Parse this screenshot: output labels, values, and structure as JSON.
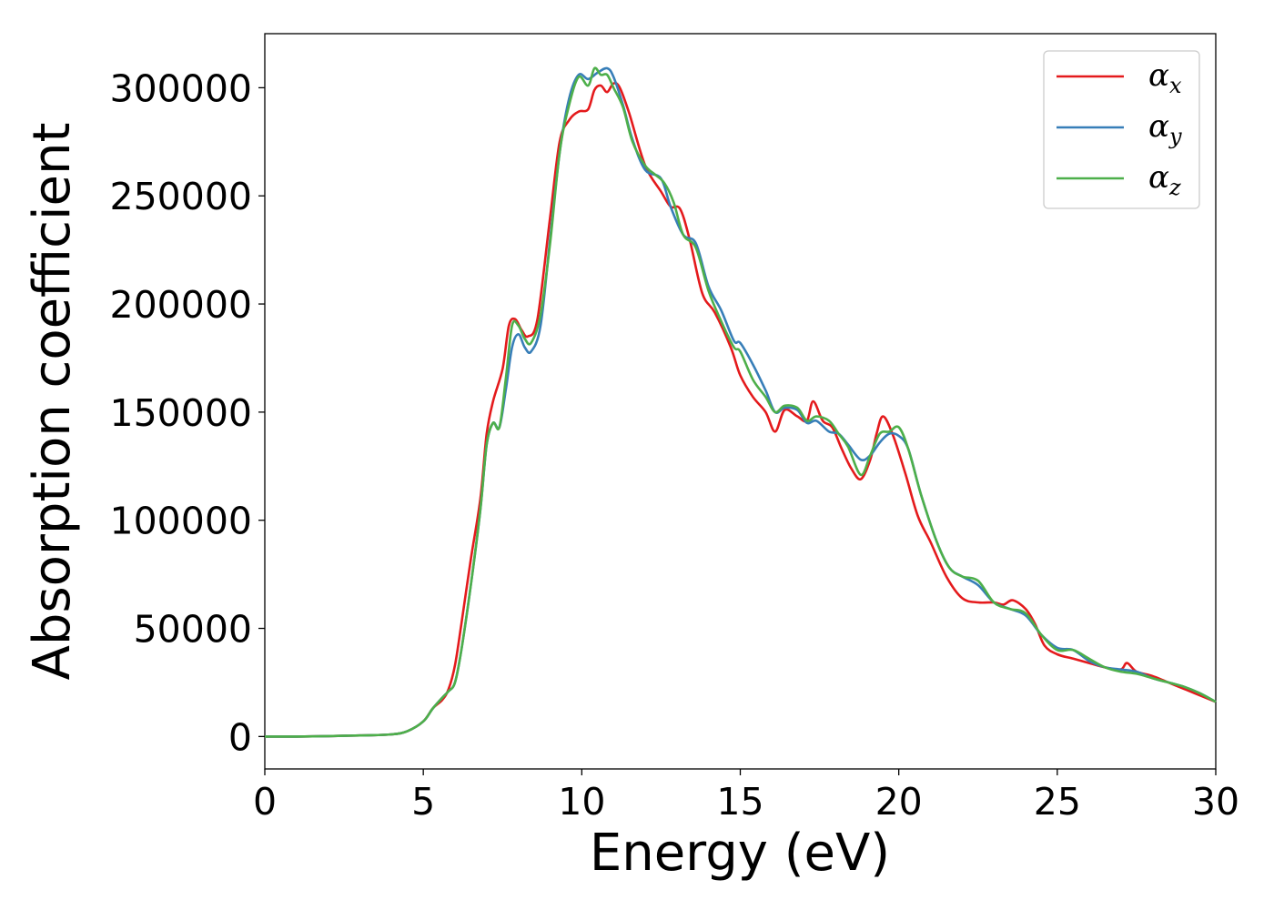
{
  "chart_data": {
    "type": "line",
    "title": "",
    "xlabel": "Energy (eV)",
    "ylabel": "Absorption coefficient",
    "xlim": [
      0,
      30
    ],
    "ylim": [
      -15000,
      325000
    ],
    "xticks": [
      0,
      5,
      10,
      15,
      20,
      25,
      30
    ],
    "yticks": [
      0,
      50000,
      100000,
      150000,
      200000,
      250000,
      300000
    ],
    "grid": false,
    "legend_position": "top-right",
    "series": [
      {
        "name": "α_x",
        "legend_base": "α",
        "legend_sub": "x",
        "color": "#e41a1c",
        "x": [
          0,
          1,
          2,
          3,
          4,
          4.5,
          5,
          5.3,
          5.6,
          5.8,
          6.0,
          6.2,
          6.5,
          6.8,
          7.0,
          7.2,
          7.5,
          7.7,
          7.9,
          8.1,
          8.3,
          8.6,
          9.0,
          9.3,
          9.6,
          9.9,
          10.2,
          10.4,
          10.6,
          10.8,
          11.0,
          11.2,
          11.5,
          12.0,
          12.5,
          12.8,
          13.1,
          13.4,
          13.8,
          14.2,
          14.7,
          15.0,
          15.4,
          15.8,
          16.1,
          16.4,
          16.8,
          17.1,
          17.3,
          17.6,
          17.9,
          18.2,
          18.5,
          18.8,
          19.1,
          19.3,
          19.5,
          19.8,
          20.2,
          20.6,
          21.0,
          21.5,
          22.0,
          22.5,
          23.0,
          23.3,
          23.6,
          24.0,
          24.3,
          24.6,
          25.0,
          25.5,
          26.0,
          26.5,
          27.0,
          27.2,
          27.5,
          28.0,
          28.5,
          29.0,
          29.5,
          30.0
        ],
        "y": [
          0,
          0,
          200,
          500,
          1000,
          2500,
          7000,
          13000,
          17000,
          22000,
          33000,
          52000,
          82000,
          110000,
          140000,
          155000,
          170000,
          190000,
          193000,
          188000,
          185000,
          193000,
          240000,
          275000,
          285000,
          289000,
          290000,
          299000,
          301000,
          298000,
          302000,
          300000,
          288000,
          264000,
          252000,
          245000,
          244000,
          230000,
          205000,
          196000,
          180000,
          167000,
          157000,
          150000,
          141000,
          151000,
          148000,
          146000,
          155000,
          146000,
          143000,
          133000,
          124000,
          119000,
          128000,
          140000,
          148000,
          140000,
          122000,
          102000,
          90000,
          74000,
          64000,
          62000,
          62000,
          61000,
          63000,
          59000,
          52000,
          42000,
          38000,
          36000,
          34000,
          32000,
          31000,
          34000,
          30000,
          28000,
          25000,
          22000,
          19000,
          16000
        ]
      },
      {
        "name": "α_y",
        "legend_base": "α",
        "legend_sub": "y",
        "color": "#377eb8",
        "x": [
          0,
          1,
          2,
          3,
          4,
          4.5,
          5,
          5.3,
          5.6,
          5.8,
          6.0,
          6.2,
          6.5,
          6.8,
          7.0,
          7.2,
          7.4,
          7.6,
          7.8,
          8.0,
          8.2,
          8.4,
          8.7,
          9.0,
          9.3,
          9.6,
          9.9,
          10.2,
          10.5,
          10.8,
          11.0,
          11.3,
          11.6,
          12.0,
          12.5,
          12.8,
          13.2,
          13.6,
          14.0,
          14.4,
          14.8,
          15.0,
          15.4,
          15.8,
          16.1,
          16.4,
          16.8,
          17.1,
          17.4,
          17.8,
          18.1,
          18.4,
          18.8,
          19.1,
          19.4,
          19.7,
          20.0,
          20.3,
          20.7,
          21.2,
          21.6,
          22.0,
          22.5,
          23.0,
          23.5,
          24.0,
          24.5,
          25.0,
          25.5,
          26.0,
          26.5,
          27.0,
          27.5,
          28.0,
          28.5,
          29.0,
          29.5,
          30.0
        ],
        "y": [
          0,
          0,
          200,
          500,
          1000,
          2500,
          7000,
          13000,
          18000,
          21000,
          25000,
          40000,
          70000,
          105000,
          135000,
          145000,
          143000,
          160000,
          180000,
          186000,
          180000,
          178000,
          190000,
          230000,
          270000,
          295000,
          306000,
          304000,
          307000,
          309000,
          305000,
          292000,
          276000,
          262000,
          258000,
          245000,
          232000,
          228000,
          208000,
          197000,
          183000,
          182000,
          172000,
          160000,
          150000,
          152000,
          151000,
          145000,
          146000,
          141000,
          140000,
          135000,
          128000,
          130000,
          136000,
          140000,
          139000,
          133000,
          112000,
          90000,
          78000,
          74000,
          70000,
          62000,
          59000,
          56000,
          47000,
          41000,
          40000,
          35000,
          32000,
          31000,
          30000,
          27000,
          25000,
          23000,
          20000,
          16000
        ]
      },
      {
        "name": "α_z",
        "legend_base": "α",
        "legend_sub": "z",
        "color": "#4daf4a",
        "x": [
          0,
          1,
          2,
          3,
          4,
          4.5,
          5,
          5.3,
          5.6,
          5.8,
          6.0,
          6.2,
          6.5,
          6.8,
          7.0,
          7.2,
          7.4,
          7.6,
          7.8,
          8.0,
          8.2,
          8.4,
          8.7,
          9.0,
          9.3,
          9.6,
          9.9,
          10.2,
          10.4,
          10.6,
          10.8,
          11.0,
          11.3,
          11.6,
          12.0,
          12.3,
          12.6,
          12.9,
          13.2,
          13.6,
          14.0,
          14.4,
          14.8,
          15.0,
          15.4,
          15.8,
          16.1,
          16.4,
          16.8,
          17.1,
          17.4,
          17.8,
          18.1,
          18.4,
          18.8,
          19.1,
          19.4,
          19.7,
          20.0,
          20.3,
          20.7,
          21.2,
          21.6,
          22.0,
          22.5,
          23.0,
          23.5,
          24.0,
          24.5,
          25.0,
          25.5,
          26.0,
          26.5,
          27.0,
          27.5,
          28.0,
          28.5,
          29.0,
          29.5,
          30.0
        ],
        "y": [
          0,
          0,
          200,
          500,
          1000,
          2500,
          7000,
          13000,
          18000,
          21000,
          25000,
          40000,
          70000,
          105000,
          135000,
          145000,
          143000,
          165000,
          190000,
          190000,
          184000,
          182000,
          195000,
          228000,
          270000,
          292000,
          305000,
          301000,
          309000,
          306000,
          306000,
          300000,
          291000,
          275000,
          264000,
          260000,
          256000,
          247000,
          232000,
          226000,
          206000,
          192000,
          180000,
          178000,
          165000,
          157000,
          150000,
          153000,
          152000,
          146000,
          148000,
          146000,
          140000,
          134000,
          121000,
          130000,
          140000,
          141000,
          143000,
          133000,
          112000,
          90000,
          78000,
          74000,
          72000,
          62000,
          59000,
          57000,
          47000,
          40000,
          40000,
          36000,
          32000,
          30000,
          29000,
          27000,
          25000,
          23000,
          20000,
          16000
        ]
      }
    ]
  }
}
